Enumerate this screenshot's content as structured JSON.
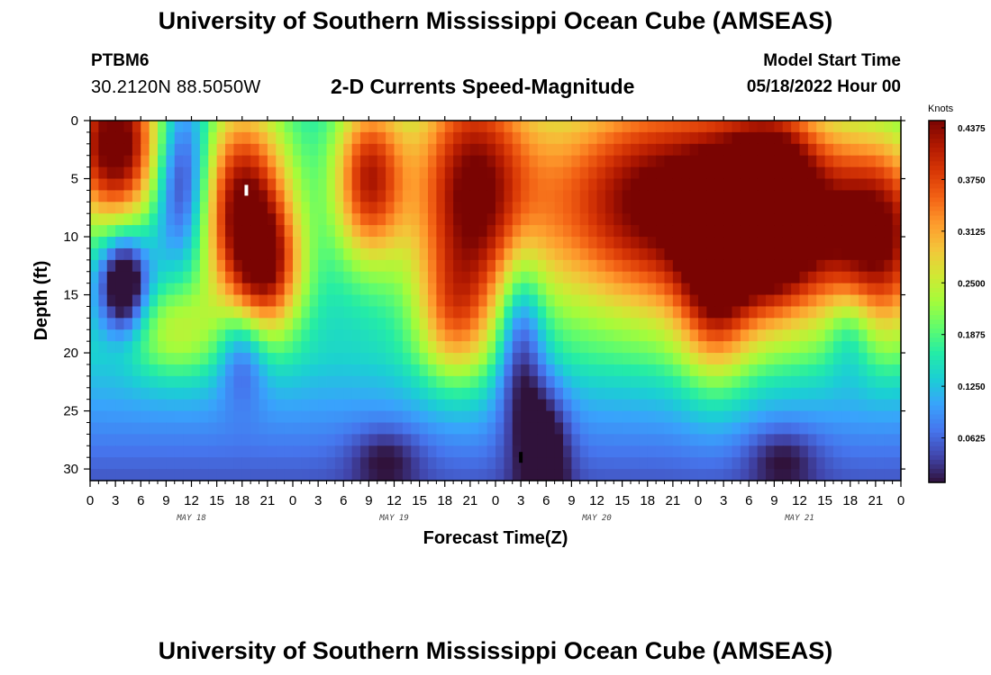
{
  "header": {
    "title": "University of Southern Mississippi Ocean Cube (AMSEAS)",
    "station": "PTBM6",
    "coordinates": "30.2120N  88.5050W",
    "subtitle": "2-D Currents Speed-Magnitude",
    "model_start_label": "Model Start Time",
    "model_start_value": "05/18/2022 Hour 00"
  },
  "footer": {
    "title": "University of Southern Mississippi Ocean Cube (AMSEAS)"
  },
  "chart_data": {
    "type": "heatmap",
    "title": "2-D Currents Speed-Magnitude",
    "xlabel": "Forecast Time(Z)",
    "ylabel": "Depth (ft)",
    "x_tick_labels": [
      "0",
      "3",
      "6",
      "9",
      "12",
      "15",
      "18",
      "21",
      "0",
      "3",
      "6",
      "9",
      "12",
      "15",
      "18",
      "21",
      "0",
      "3",
      "6",
      "9",
      "12",
      "15",
      "18",
      "21",
      "0",
      "3",
      "6",
      "9",
      "12",
      "15",
      "18",
      "21",
      "0"
    ],
    "x_range_hours": [
      0,
      96
    ],
    "day_labels": [
      {
        "label": "MAY 18",
        "hour": 12
      },
      {
        "label": "MAY 19",
        "hour": 36
      },
      {
        "label": "MAY 20",
        "hour": 60
      },
      {
        "label": "MAY 21",
        "hour": 84
      }
    ],
    "y_tick_labels": [
      "0",
      "5",
      "10",
      "15",
      "20",
      "25",
      "30"
    ],
    "y_range_ft": [
      0,
      31
    ],
    "colorbar": {
      "unit": "Knots",
      "ticks": [
        "0.4375",
        "0.3750",
        "0.3125",
        "0.2500",
        "0.1875",
        "0.1250",
        "0.0625"
      ],
      "range": [
        0.0,
        0.4375
      ]
    },
    "colormap": [
      "#30123b",
      "#4145ab",
      "#4675ed",
      "#39a2fc",
      "#1bcfd4",
      "#24eca6",
      "#61fc6c",
      "#a4fc3b",
      "#d1e834",
      "#f3c63a",
      "#fe9b2d",
      "#f36315",
      "#d93806",
      "#b11901",
      "#7a0402"
    ],
    "features": [
      {
        "t": 3,
        "d": 2,
        "v": 0.34,
        "st": 4,
        "sd": 5
      },
      {
        "t": 4,
        "d": 14,
        "v": -0.22,
        "st": 2,
        "sd": 3
      },
      {
        "t": 11,
        "d": 5,
        "v": -0.18,
        "st": 2.5,
        "sd": 5
      },
      {
        "t": 10,
        "d": 18,
        "v": 0.1,
        "st": 4,
        "sd": 3
      },
      {
        "t": 18,
        "d": 7,
        "v": 0.3,
        "st": 4,
        "sd": 6
      },
      {
        "t": 21,
        "d": 13,
        "v": 0.2,
        "st": 3,
        "sd": 4
      },
      {
        "t": 18,
        "d": 20,
        "v": -0.1,
        "st": 2,
        "sd": 3
      },
      {
        "t": 33,
        "d": 5,
        "v": 0.26,
        "st": 3,
        "sd": 5
      },
      {
        "t": 45,
        "d": 6,
        "v": 0.28,
        "st": 5,
        "sd": 8
      },
      {
        "t": 43,
        "d": 17,
        "v": 0.12,
        "st": 3,
        "sd": 4
      },
      {
        "t": 51,
        "d": 19,
        "v": -0.14,
        "st": 2,
        "sd": 6
      },
      {
        "t": 54,
        "d": 28,
        "v": -0.1,
        "st": 2,
        "sd": 4
      },
      {
        "t": 69,
        "d": 7,
        "v": 0.34,
        "st": 12,
        "sd": 7
      },
      {
        "t": 81,
        "d": 8,
        "v": 0.3,
        "st": 4,
        "sd": 6
      },
      {
        "t": 74,
        "d": 14,
        "v": 0.18,
        "st": 3,
        "sd": 6
      },
      {
        "t": 93,
        "d": 10,
        "v": 0.3,
        "st": 5,
        "sd": 6
      },
      {
        "t": 90,
        "d": 18,
        "v": -0.08,
        "st": 2,
        "sd": 3
      },
      {
        "t": 35,
        "d": 29,
        "v": -0.06,
        "st": 3,
        "sd": 2
      },
      {
        "t": 82,
        "d": 29,
        "v": -0.06,
        "st": 3,
        "sd": 2
      }
    ],
    "markers": [
      {
        "hour": 18.5,
        "depth": 6,
        "color": "#ffffff"
      },
      {
        "hour": 51.0,
        "depth": 29.0,
        "color": "#000000"
      }
    ]
  }
}
